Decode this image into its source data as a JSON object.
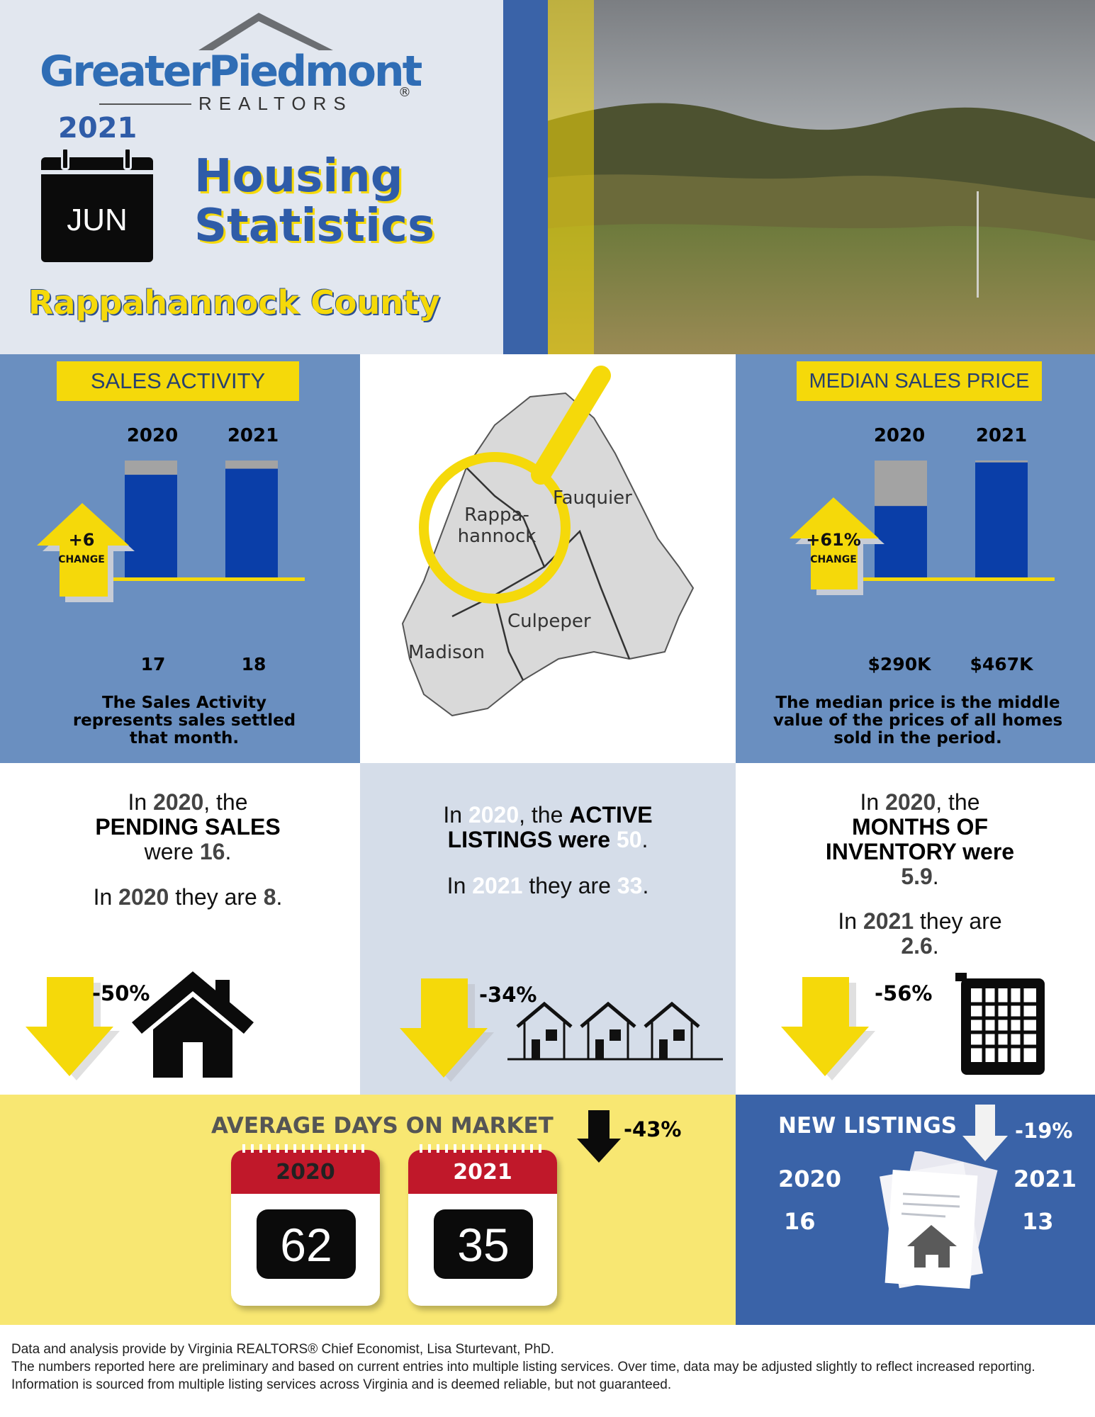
{
  "header": {
    "logo_brand": "GreaterPiedmont",
    "logo_sub": "REALTORS",
    "registered_mark": "®",
    "year": "2021",
    "month": "JUN",
    "title_line1": "Housing",
    "title_line2": "Statistics",
    "county": "Rappahannock County"
  },
  "sales_activity": {
    "tag": "SALES ACTIVITY",
    "change_value": "+6",
    "change_label": "CHANGE",
    "years": [
      "2020",
      "2021"
    ],
    "value_labels": [
      "17",
      "18"
    ],
    "note": "The Sales Activity represents sales settled that month."
  },
  "map": {
    "labels": [
      "Rappa-",
      "hannock",
      "Fauquier",
      "Culpeper",
      "Madison"
    ]
  },
  "median_price": {
    "tag": "MEDIAN SALES PRICE",
    "change_value": "+61%",
    "change_label": "CHANGE",
    "years": [
      "2020",
      "2021"
    ],
    "value_labels": [
      "$290K",
      "$467K"
    ],
    "note": "The median price is the middle value of the prices of all homes sold in the period."
  },
  "chart_data": [
    {
      "type": "bar",
      "categories": [
        "2020",
        "2021"
      ],
      "values": [
        17,
        18
      ],
      "title": "SALES ACTIVITY"
    },
    {
      "type": "bar",
      "categories": [
        "2020",
        "2021"
      ],
      "values": [
        290,
        467
      ],
      "title": "MEDIAN SALES PRICE"
    }
  ],
  "pending": {
    "p1": "In ",
    "y1": "2020",
    "p2": ", the",
    "kw": "PENDING SALES",
    "p3": "were ",
    "v1": "16",
    "p4": ".",
    "p5": "In ",
    "y2": "2020",
    "p6": " they are ",
    "v2": "8",
    "p7": ".",
    "pct": "-50%"
  },
  "active": {
    "p1": "In ",
    "y1": "2020",
    "p2": ", the ",
    "kw1": "ACTIVE",
    "kw2": "LISTINGS  were ",
    "v1": "50",
    "p3": ".",
    "p4": "In ",
    "y2": "2021",
    "p5": " they are ",
    "v2": "33",
    "p6": ".",
    "pct": "-34%"
  },
  "inventory": {
    "p1": "In ",
    "y1": "2020",
    "p2": ", the",
    "kw1": "MONTHS OF",
    "kw2": "INVENTORY were",
    "v1": "5.9",
    "p3": ".",
    "p4": "In ",
    "y2": "2021",
    "p5": " they are",
    "v2": "2.6",
    "p6": ".",
    "pct": "-56%"
  },
  "days_on_market": {
    "title": "AVERAGE DAYS ON MARKET",
    "pct": "-43%",
    "years": [
      "2020",
      "2021"
    ],
    "values": [
      "62",
      "35"
    ]
  },
  "new_listings": {
    "title": "NEW LISTINGS",
    "pct": "-19%",
    "year1": "2020",
    "year2": "2021",
    "value1": "16",
    "value2": "13"
  },
  "footer": {
    "line1": "Data and analysis provide by Virginia REALTORS® Chief Economist, Lisa Sturtevant, PhD.",
    "line2": "The numbers reported here are preliminary and based on current entries into multiple listing services. Over time, data may be adjusted slightly to reflect increased reporting. Information is sourced from multiple listing services across Virginia and is deemed reliable, but not guaranteed."
  },
  "colors": {
    "brand_blue": "#2f6db5",
    "bar_blue": "#0a3ea8",
    "accent_yellow": "#f5d90a",
    "panel_blue": "#6a8fc0",
    "calendar_red": "#c0182a"
  }
}
